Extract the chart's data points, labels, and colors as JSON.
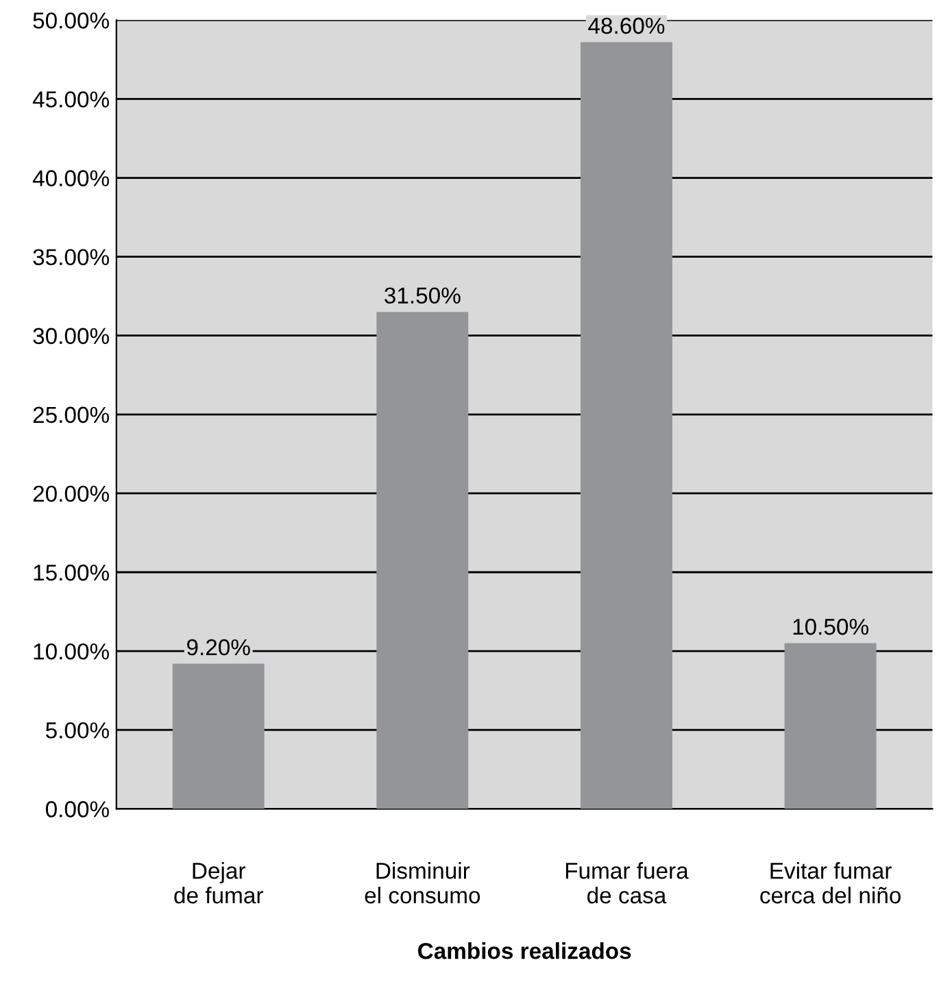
{
  "chart_data": {
    "type": "bar",
    "xlabel": "Cambios realizados",
    "categories": [
      "Dejar\nde fumar",
      "Disminuir\nel consumo",
      "Fumar fuera\nde casa",
      "Evitar fumar\ncerca del niño"
    ],
    "values": [
      9.2,
      31.5,
      48.6,
      10.5
    ],
    "value_labels": [
      "9.20%",
      "31.50%",
      "48.60%",
      "10.50%"
    ],
    "color": "#939598",
    "ylim": [
      0,
      50
    ],
    "yticks": [
      {
        "value": 0,
        "label": "0.00%"
      },
      {
        "value": 5,
        "label": "5.00%"
      },
      {
        "value": 10,
        "label": "10.00%"
      },
      {
        "value": 15,
        "label": "15.00%"
      },
      {
        "value": 20,
        "label": "20.00%"
      },
      {
        "value": 25,
        "label": "25.00%"
      },
      {
        "value": 30,
        "label": "30.00%"
      },
      {
        "value": 35,
        "label": "35.00%"
      },
      {
        "value": 40,
        "label": "40.00%"
      },
      {
        "value": 45,
        "label": "45.00%"
      },
      {
        "value": 50,
        "label": "50.00%"
      }
    ],
    "grid": "y"
  }
}
